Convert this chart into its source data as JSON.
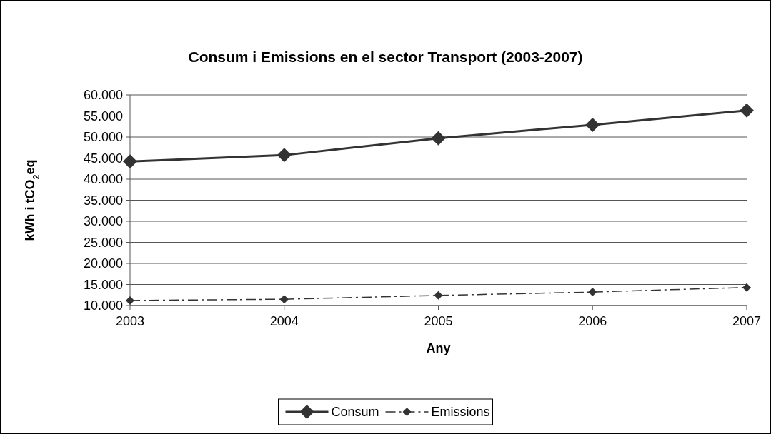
{
  "chart_data": {
    "type": "line",
    "title": "Consum i Emissions en el sector Transport (2003-2007)",
    "xlabel": "Any",
    "ylabel": "kWh i tCO$_{2}$eq",
    "xlim": [
      2003,
      2007
    ],
    "xticks": [
      2003,
      2004,
      2005,
      2006,
      2007
    ],
    "ylim": [
      10000,
      60000
    ],
    "yticks": [
      {
        "value": 10000,
        "label": "10.000"
      },
      {
        "value": 15000,
        "label": "15.000"
      },
      {
        "value": 20000,
        "label": "20.000"
      },
      {
        "value": 25000,
        "label": "25.000"
      },
      {
        "value": 30000,
        "label": "30.000"
      },
      {
        "value": 35000,
        "label": "35.000"
      },
      {
        "value": 40000,
        "label": "40.000"
      },
      {
        "value": 45000,
        "label": "45.000"
      },
      {
        "value": 50000,
        "label": "50.000"
      },
      {
        "value": 55000,
        "label": "55.000"
      },
      {
        "value": 60000,
        "label": "60.000"
      }
    ],
    "grid": "y",
    "legend": "bottom",
    "marker": "diamond",
    "series": [
      {
        "name": "Consum",
        "color": "#333333",
        "line_style": "solid",
        "x": [
          2003,
          2004,
          2005,
          2006,
          2007
        ],
        "values": [
          44200,
          45700,
          49700,
          52900,
          56300
        ]
      },
      {
        "name": "Emissions",
        "color": "#333333",
        "line_style": "dashed",
        "x": [
          2003,
          2004,
          2005,
          2006,
          2007
        ],
        "values": [
          11200,
          11500,
          12400,
          13200,
          14300
        ]
      }
    ]
  }
}
